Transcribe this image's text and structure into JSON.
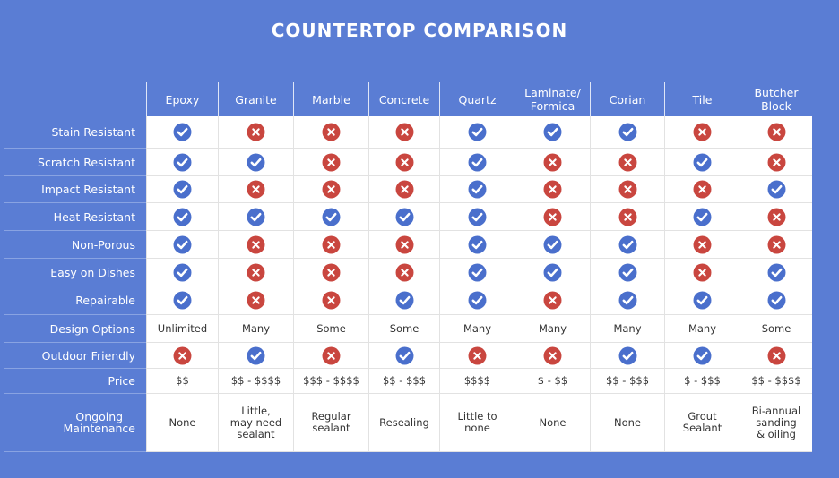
{
  "header": {
    "title": "COUNTERTOP COMPARISON"
  },
  "table": {
    "columns": [
      "Epoxy",
      "Granite",
      "Marble",
      "Concrete",
      "Quartz",
      "Laminate/\nFormica",
      "Corian",
      "Tile",
      "Butcher\nBlock"
    ],
    "rows": [
      {
        "label": "Stain Resistant",
        "cells": [
          true,
          false,
          false,
          false,
          true,
          true,
          true,
          false,
          false
        ]
      },
      {
        "label": "Scratch Resistant",
        "cells": [
          true,
          true,
          false,
          false,
          true,
          false,
          false,
          true,
          false
        ]
      },
      {
        "label": "Impact Resistant",
        "cells": [
          true,
          false,
          false,
          false,
          true,
          false,
          false,
          false,
          true
        ]
      },
      {
        "label": "Heat Resistant",
        "cells": [
          true,
          true,
          true,
          true,
          true,
          false,
          false,
          true,
          false
        ]
      },
      {
        "label": "Non-Porous",
        "cells": [
          true,
          false,
          false,
          false,
          true,
          true,
          true,
          false,
          false
        ]
      },
      {
        "label": "Easy on Dishes",
        "cells": [
          true,
          false,
          false,
          false,
          true,
          true,
          true,
          false,
          true
        ]
      },
      {
        "label": "Repairable",
        "cells": [
          true,
          false,
          false,
          true,
          true,
          false,
          true,
          true,
          true
        ]
      },
      {
        "label": "Design Options",
        "cells": [
          "Unlimited",
          "Many",
          "Some",
          "Some",
          "Many",
          "Many",
          "Many",
          "Many",
          "Some"
        ]
      },
      {
        "label": "Outdoor Friendly",
        "cells": [
          false,
          true,
          false,
          true,
          false,
          false,
          true,
          true,
          false
        ]
      },
      {
        "label": "Price",
        "cells": [
          "$$",
          "$$ - $$$$",
          "$$$ - $$$$",
          "$$ - $$$",
          "$$$$",
          "$ - $$",
          "$$ - $$$",
          "$ - $$$",
          "$$ - $$$$"
        ]
      },
      {
        "label": "Ongoing\nMaintenance",
        "cells": [
          "None",
          "Little,\nmay need\nsealant",
          "Regular\nsealant",
          "Resealing",
          "Little to\nnone",
          "None",
          "None",
          "Grout\nSealant",
          "Bi-annual\nsanding\n& oiling"
        ]
      }
    ]
  }
}
